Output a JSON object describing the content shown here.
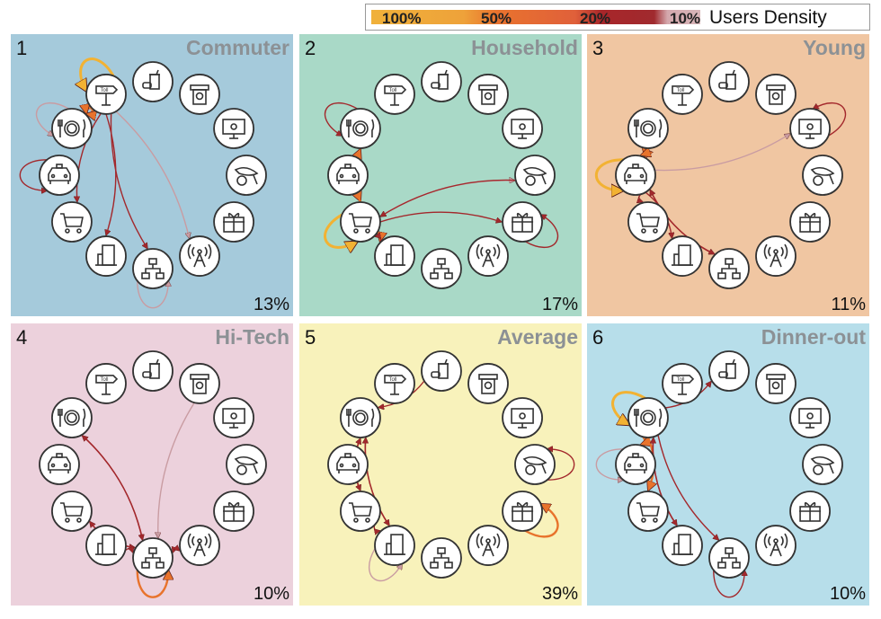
{
  "legend": {
    "title": "Users Density",
    "levels": [
      {
        "label": "100%",
        "color": "#f2b233"
      },
      {
        "label": "50%",
        "color": "#e8732c"
      },
      {
        "label": "20%",
        "color": "#a3282c"
      },
      {
        "label": "10%",
        "color": "#c99ca2"
      }
    ]
  },
  "toll_text": "Toll",
  "nodes": [
    "food",
    "atm",
    "computer",
    "fish",
    "gift",
    "antenna",
    "network",
    "fuel",
    "cart",
    "taxi",
    "dinner",
    "toll"
  ],
  "panels": [
    {
      "number": "1",
      "name": "Commuter",
      "percent": "13%",
      "bg": "#a5cadb",
      "edges": [
        [
          "toll",
          "toll",
          0
        ],
        [
          "toll",
          "dinner",
          1
        ],
        [
          "toll",
          "dinner",
          1
        ],
        [
          "dinner",
          "dinner",
          3
        ],
        [
          "taxi",
          "taxi",
          2
        ],
        [
          "toll",
          "cart",
          2
        ],
        [
          "toll",
          "fuel",
          2
        ],
        [
          "toll",
          "network",
          2
        ],
        [
          "toll",
          "antenna",
          3
        ],
        [
          "network",
          "network",
          3
        ]
      ]
    },
    {
      "number": "2",
      "name": "Household",
      "percent": "17%",
      "bg": "#a9d9c7",
      "edges": [
        [
          "dinner",
          "dinner",
          2
        ],
        [
          "dinner",
          "cart",
          1
        ],
        [
          "cart",
          "dinner",
          1
        ],
        [
          "cart",
          "cart",
          0
        ],
        [
          "cart",
          "fish",
          3
        ],
        [
          "fish",
          "cart",
          2
        ],
        [
          "cart",
          "gift",
          2
        ],
        [
          "gift",
          "gift",
          2
        ],
        [
          "cart",
          "fuel",
          1
        ],
        [
          "fuel",
          "cart",
          2
        ]
      ]
    },
    {
      "number": "3",
      "name": "Young",
      "percent": "11%",
      "bg": "#f0c6a2",
      "edges": [
        [
          "taxi",
          "taxi",
          0
        ],
        [
          "taxi",
          "dinner",
          1
        ],
        [
          "dinner",
          "taxi",
          1
        ],
        [
          "taxi",
          "computer",
          3
        ],
        [
          "computer",
          "computer",
          2
        ],
        [
          "taxi",
          "cart",
          2
        ],
        [
          "taxi",
          "fuel",
          2
        ],
        [
          "taxi",
          "network",
          2
        ],
        [
          "network",
          "taxi",
          2
        ]
      ]
    },
    {
      "number": "4",
      "name": "Hi-Tech",
      "percent": "10%",
      "bg": "#ecd1dc",
      "edges": [
        [
          "network",
          "network",
          1
        ],
        [
          "network",
          "dinner",
          2
        ],
        [
          "dinner",
          "network",
          2
        ],
        [
          "atm",
          "network",
          3
        ],
        [
          "network",
          "cart",
          2
        ],
        [
          "cart",
          "network",
          2
        ],
        [
          "fuel",
          "network",
          2
        ],
        [
          "antenna",
          "network",
          2
        ],
        [
          "network",
          "antenna",
          2
        ]
      ]
    },
    {
      "number": "5",
      "name": "Average",
      "percent": "39%",
      "bg": "#f8f2bb",
      "edges": [
        [
          "food",
          "dinner",
          2
        ],
        [
          "dinner",
          "cart",
          2
        ],
        [
          "cart",
          "dinner",
          2
        ],
        [
          "dinner",
          "fuel",
          2
        ],
        [
          "fuel",
          "dinner",
          2
        ],
        [
          "cart",
          "fuel",
          2
        ],
        [
          "fuel",
          "fuel",
          3
        ],
        [
          "fish",
          "fish",
          2
        ],
        [
          "gift",
          "gift",
          1
        ]
      ]
    },
    {
      "number": "6",
      "name": "Dinner-out",
      "percent": "10%",
      "bg": "#b7deea",
      "edges": [
        [
          "dinner",
          "dinner",
          0
        ],
        [
          "dinner",
          "food",
          2
        ],
        [
          "dinner",
          "taxi",
          1
        ],
        [
          "taxi",
          "taxi",
          3
        ],
        [
          "dinner",
          "cart",
          1
        ],
        [
          "dinner",
          "fuel",
          2
        ],
        [
          "fuel",
          "dinner",
          2
        ],
        [
          "dinner",
          "network",
          2
        ],
        [
          "network",
          "network",
          2
        ]
      ]
    }
  ]
}
